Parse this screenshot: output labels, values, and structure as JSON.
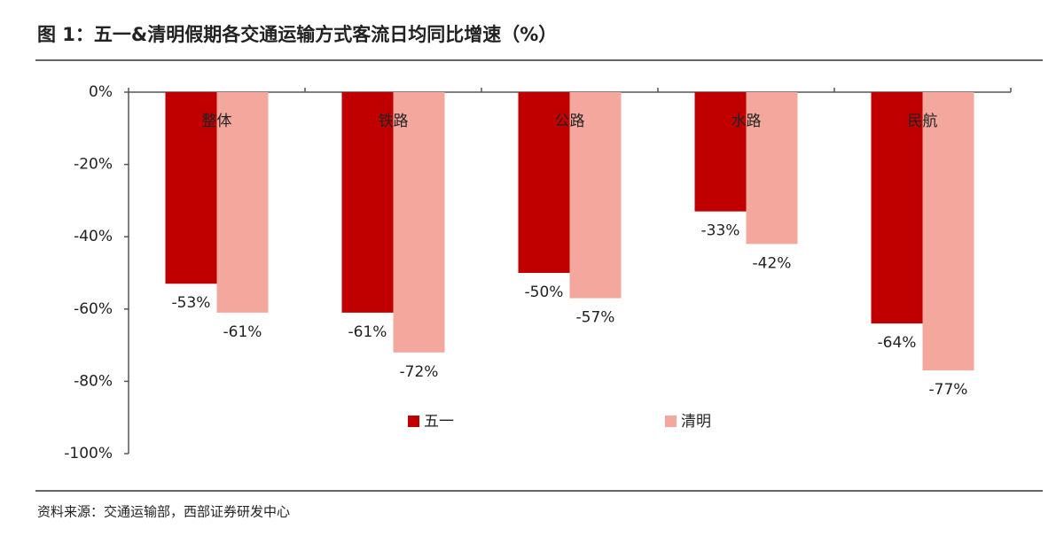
{
  "chart_data": {
    "type": "bar",
    "title": "图 1：五一&清明假期各交通运输方式客流日均同比增速（%）",
    "source": "资料来源：交通运输部，西部证券研发中心",
    "categories": [
      "整体",
      "铁路",
      "公路",
      "水路",
      "民航"
    ],
    "series": [
      {
        "name": "五一",
        "color": "#c00000",
        "values": [
          -53,
          -61,
          -50,
          -33,
          -64
        ],
        "value_labels": [
          "-53%",
          "-61%",
          "-50%",
          "-33%",
          "-64%"
        ]
      },
      {
        "name": "清明",
        "color": "#f4a79d",
        "values": [
          -61,
          -72,
          -57,
          -42,
          -77
        ],
        "value_labels": [
          "-61%",
          "-72%",
          "-57%",
          "-42%",
          "-77%"
        ]
      }
    ],
    "ylim": [
      -100,
      0
    ],
    "yticks": [
      {
        "value": 0,
        "label": "0%"
      },
      {
        "value": -20,
        "label": "-20%"
      },
      {
        "value": -40,
        "label": "-40%"
      },
      {
        "value": -60,
        "label": "-60%"
      },
      {
        "value": -80,
        "label": "-80%"
      },
      {
        "value": -100,
        "label": "-100%"
      }
    ],
    "grid": false
  }
}
